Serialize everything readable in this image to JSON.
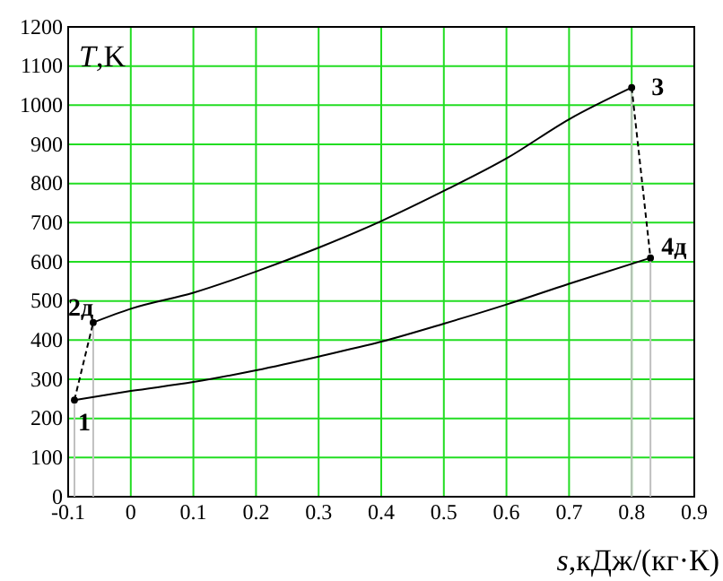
{
  "chart_data": {
    "type": "line",
    "xlabel": "s,кДж/(кг·К)",
    "ylabel": "T,K",
    "xlim": [
      -0.1,
      0.9
    ],
    "xticks": [
      -0.1,
      0,
      0.1,
      0.2,
      0.3,
      0.4,
      0.5,
      0.6,
      0.7,
      0.8,
      0.9
    ],
    "ylim": [
      0,
      1200
    ],
    "yticks": [
      0,
      100,
      200,
      300,
      400,
      500,
      600,
      700,
      800,
      900,
      1000,
      1100,
      1200
    ],
    "grid": true,
    "series": [
      {
        "color": "#c0c0c0",
        "line_style": "solid",
        "marker": "none",
        "x": [
          -0.09,
          -0.09
        ],
        "values": [
          0,
          247
        ]
      },
      {
        "color": "#c0c0c0",
        "line_style": "solid",
        "marker": "none",
        "x": [
          -0.06,
          -0.06
        ],
        "values": [
          0,
          445
        ]
      },
      {
        "color": "#c0c0c0",
        "line_style": "solid",
        "marker": "none",
        "x": [
          0.8,
          0.8
        ],
        "values": [
          0,
          1045
        ]
      },
      {
        "color": "#c0c0c0",
        "line_style": "solid",
        "marker": "none",
        "x": [
          0.83,
          0.83
        ],
        "values": [
          0,
          610
        ]
      },
      {
        "color": "#000000",
        "line_style": "solid",
        "marker": "none",
        "x": [
          -0.06,
          0,
          0.1,
          0.2,
          0.3,
          0.4,
          0.5,
          0.6,
          0.7,
          0.8
        ],
        "values": [
          445,
          480,
          521,
          575,
          636,
          704,
          781,
          864,
          964,
          1045
        ]
      },
      {
        "color": "#000000",
        "line_style": "solid",
        "marker": "none",
        "x": [
          -0.09,
          0,
          0.1,
          0.2,
          0.3,
          0.4,
          0.5,
          0.6,
          0.7,
          0.83
        ],
        "values": [
          247,
          270,
          293,
          323,
          358,
          396,
          442,
          491,
          544,
          610
        ]
      },
      {
        "color": "#000000",
        "line_style": "dashed",
        "marker": "none",
        "x": [
          -0.09,
          -0.06
        ],
        "values": [
          247,
          445
        ]
      },
      {
        "color": "#000000",
        "line_style": "dashed",
        "marker": "none",
        "x": [
          0.8,
          0.83
        ],
        "values": [
          1045,
          610
        ]
      },
      {
        "type": "scatter",
        "color": "#000000",
        "marker": "circle",
        "x": [
          -0.09,
          -0.06,
          0.8,
          0.83
        ],
        "values": [
          247,
          445,
          1045,
          610
        ]
      }
    ],
    "annotations": [
      {
        "text": "1",
        "x": -0.09,
        "y": 247
      },
      {
        "text": "2д",
        "x": -0.06,
        "y": 445
      },
      {
        "text": "3",
        "x": 0.8,
        "y": 1045
      },
      {
        "text": "4д",
        "x": 0.83,
        "y": 610
      }
    ]
  }
}
